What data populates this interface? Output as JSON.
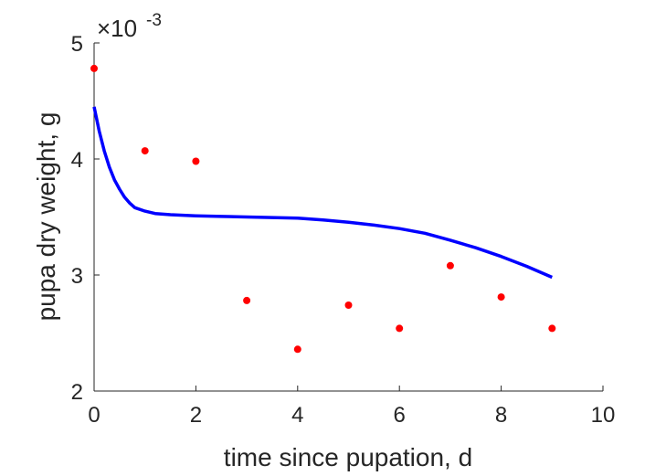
{
  "chart_data": {
    "type": "scatter",
    "xlabel": "time since pupation, d",
    "ylabel": "pupa dry weight, g",
    "xlim": [
      0,
      10
    ],
    "ylim": [
      0.002,
      0.005
    ],
    "x_ticks": [
      "0",
      "2",
      "4",
      "6",
      "8",
      "10"
    ],
    "y_ticks": [
      "2",
      "3",
      "4",
      "5"
    ],
    "y_exponent_label": "×10",
    "y_exponent_power": "-3",
    "grid": false,
    "series": [
      {
        "kind": "points",
        "color": "#ff0000",
        "x": [
          0,
          1,
          2,
          3,
          4,
          5,
          6,
          7,
          8,
          9
        ],
        "y": [
          0.00478,
          0.00407,
          0.00398,
          0.00278,
          0.00236,
          0.00274,
          0.00254,
          0.00308,
          0.00281,
          0.00254
        ]
      },
      {
        "kind": "line",
        "color": "#0000ff",
        "x": [
          0,
          0.1,
          0.2,
          0.3,
          0.4,
          0.5,
          0.6,
          0.7,
          0.8,
          1.0,
          1.2,
          1.5,
          2,
          2.5,
          3,
          3.5,
          4,
          4.5,
          5,
          5.5,
          6,
          6.5,
          7,
          7.5,
          8,
          8.5,
          9
        ],
        "y": [
          0.00445,
          0.00424,
          0.00407,
          0.00393,
          0.00382,
          0.00374,
          0.00367,
          0.00362,
          0.00358,
          0.00355,
          0.00353,
          0.00352,
          0.00351,
          0.003505,
          0.0035,
          0.003495,
          0.00349,
          0.003475,
          0.003455,
          0.00343,
          0.0034,
          0.00336,
          0.0033,
          0.003235,
          0.00316,
          0.003075,
          0.00298
        ]
      }
    ]
  }
}
